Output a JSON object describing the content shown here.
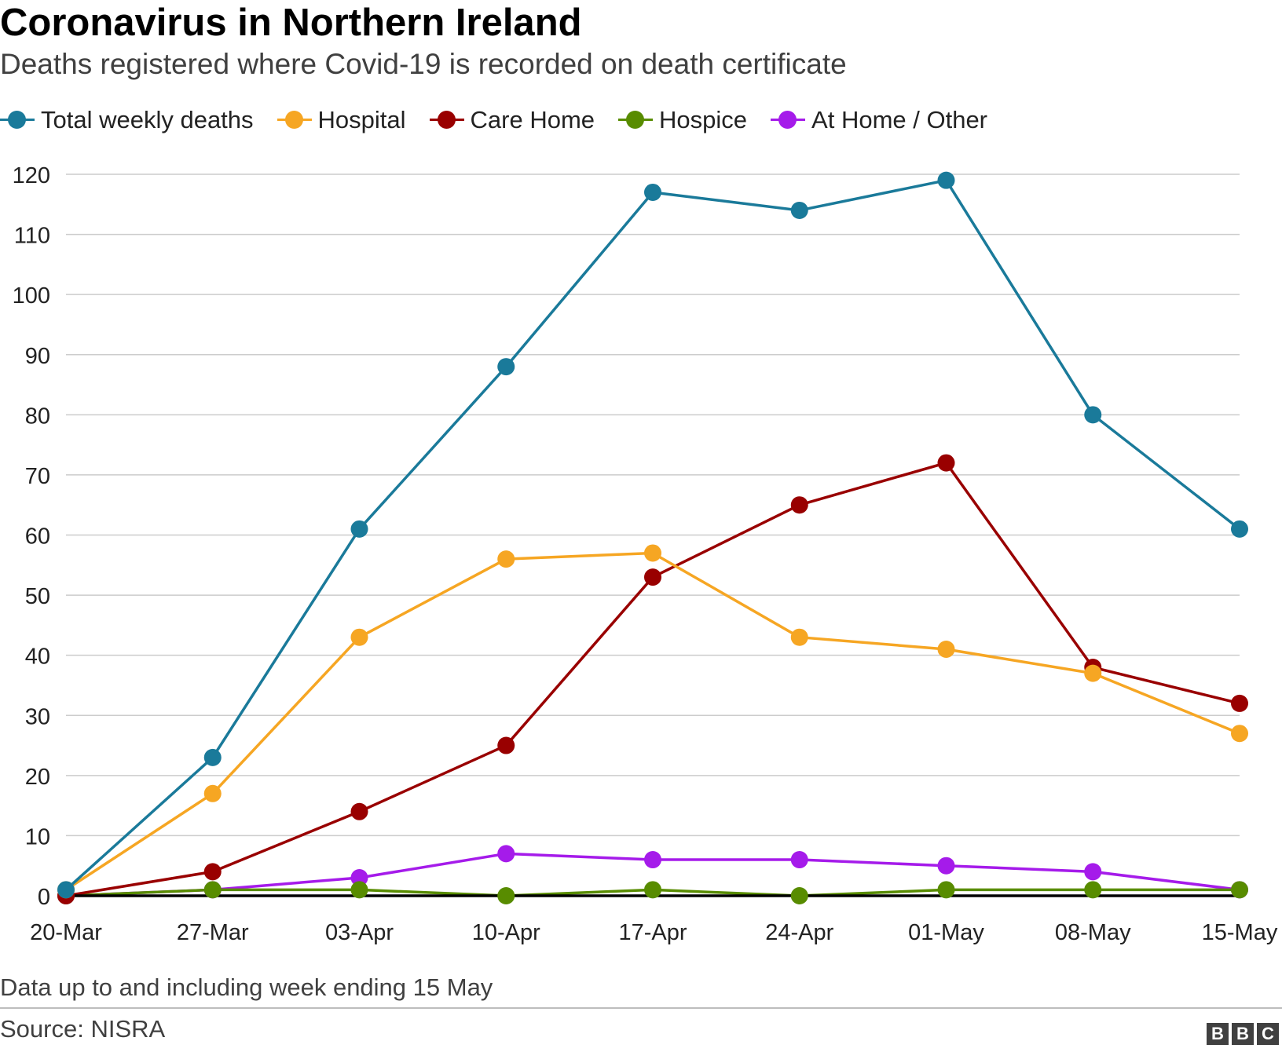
{
  "title": "Coronavirus in Northern Ireland",
  "subtitle": "Deaths registered where Covid-19 is recorded on death certificate",
  "footnote": "Data up to and including week ending 15 May",
  "source": "Source: NISRA",
  "logo_letters": [
    "B",
    "B",
    "C"
  ],
  "chart_data": {
    "type": "line",
    "x": [
      "20-Mar",
      "27-Mar",
      "03-Apr",
      "10-Apr",
      "17-Apr",
      "24-Apr",
      "01-May",
      "08-May",
      "15-May"
    ],
    "ylim": [
      0,
      120
    ],
    "yticks": [
      0,
      10,
      20,
      30,
      40,
      50,
      60,
      70,
      80,
      90,
      100,
      110,
      120
    ],
    "grid": true,
    "legend_position": "top-left",
    "xlabel": "",
    "ylabel": "",
    "series": [
      {
        "name": "Total weekly deaths",
        "color": "#1a7a9a",
        "values": [
          1,
          23,
          61,
          88,
          117,
          114,
          119,
          80,
          61
        ]
      },
      {
        "name": "Hospital",
        "color": "#f6a623",
        "values": [
          1,
          17,
          43,
          56,
          57,
          43,
          41,
          37,
          27
        ]
      },
      {
        "name": "Care Home",
        "color": "#990000",
        "values": [
          0,
          4,
          14,
          25,
          53,
          65,
          72,
          38,
          32
        ]
      },
      {
        "name": "Hospice",
        "color": "#588c00",
        "values": [
          0,
          1,
          1,
          0,
          1,
          0,
          1,
          1,
          1
        ]
      },
      {
        "name": "At Home / Other",
        "color": "#a51bea",
        "values": [
          0,
          1,
          3,
          7,
          6,
          6,
          5,
          4,
          1
        ]
      }
    ]
  }
}
